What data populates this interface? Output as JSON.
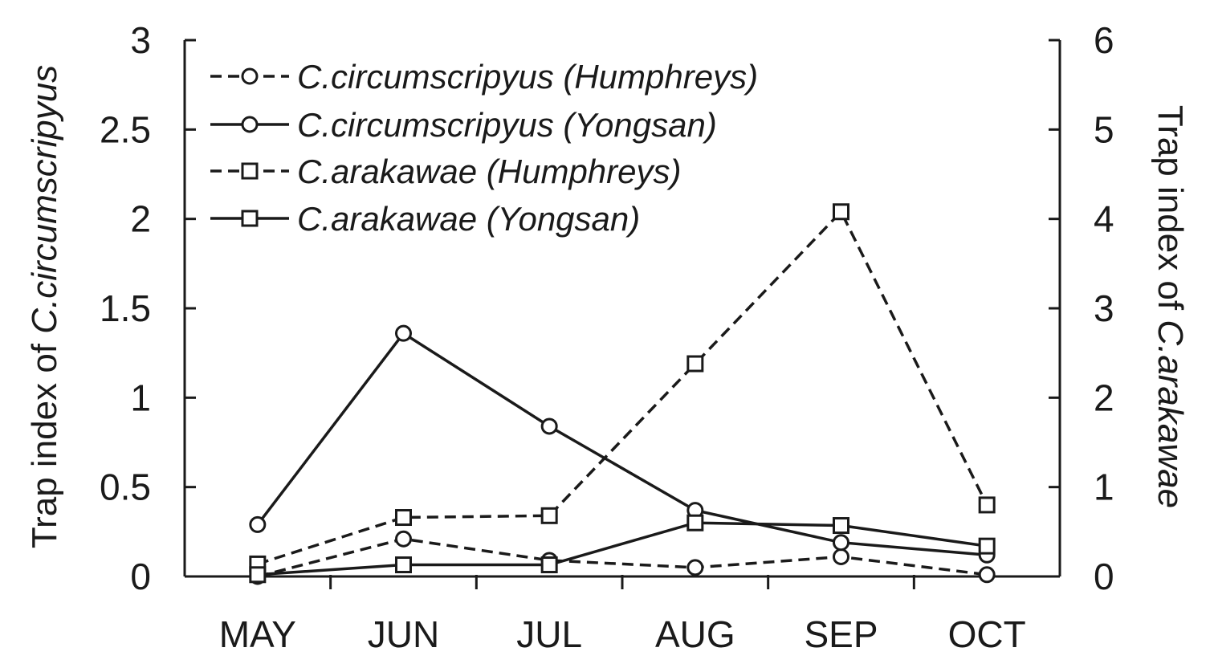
{
  "chart_data": {
    "type": "line",
    "categories": [
      "MAY",
      "JUN",
      "JUL",
      "AUG",
      "SEP",
      "OCT"
    ],
    "y_left": {
      "label_prefix": "Trap index of ",
      "label_species": "C.circumscripyus",
      "range": [
        0,
        3
      ],
      "ticks": [
        "0",
        "0.5",
        "1",
        "1.5",
        "2",
        "2.5",
        "3"
      ]
    },
    "y_right": {
      "label_prefix": "Trap index of ",
      "label_species": "C.arakawae",
      "range": [
        0,
        6
      ],
      "ticks": [
        "0",
        "1",
        "2",
        "3",
        "4",
        "5",
        "6"
      ]
    },
    "legend_position": "top-left",
    "series": [
      {
        "name": "C.circumscripyus (Humphreys)",
        "axis": "left",
        "marker": "circle",
        "dash": true,
        "values": [
          0.0,
          0.21,
          0.09,
          0.05,
          0.11,
          0.01
        ]
      },
      {
        "name": "C.circumscripyus (Yongsan)",
        "axis": "left",
        "marker": "circle",
        "dash": false,
        "values": [
          0.29,
          1.36,
          0.84,
          0.37,
          0.19,
          0.12
        ]
      },
      {
        "name": "C.arakawae (Humphreys)",
        "axis": "right",
        "marker": "square",
        "dash": true,
        "values": [
          0.14,
          0.66,
          0.68,
          2.38,
          4.08,
          0.8
        ]
      },
      {
        "name": "C.arakawae (Yongsan)",
        "axis": "right",
        "marker": "square",
        "dash": false,
        "values": [
          0.02,
          0.13,
          0.13,
          0.6,
          0.57,
          0.34
        ]
      }
    ]
  }
}
